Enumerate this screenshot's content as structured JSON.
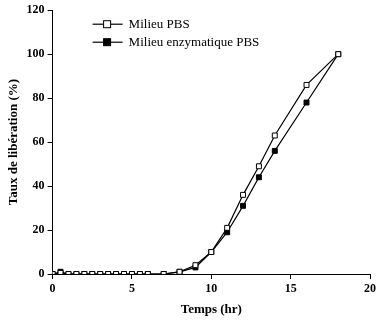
{
  "chart_data": {
    "type": "line",
    "x_label": "Temps (hr)",
    "y_label": "Taux de libération (%)",
    "x": [
      0,
      0.5,
      1,
      1.5,
      2,
      2.5,
      3,
      3.5,
      4,
      4.5,
      5,
      5.5,
      6,
      7,
      8,
      9,
      10,
      11,
      12,
      13,
      14,
      16,
      18
    ],
    "series": [
      {
        "name": "Milieu PBS",
        "color": "#000000",
        "marker": "square_open",
        "values": [
          0,
          0.5,
          0,
          0,
          0,
          0,
          0,
          0,
          0,
          0,
          0,
          0,
          0,
          0,
          1,
          4,
          10,
          21,
          36,
          49,
          63,
          86,
          100
        ]
      },
      {
        "name": "Milieu enzymatique PBS",
        "color": "#000000",
        "marker": "square",
        "values": [
          0,
          1,
          0,
          0,
          0,
          0,
          0,
          0,
          0,
          0,
          0,
          0,
          0,
          0,
          1,
          3,
          10,
          19,
          31,
          44,
          56,
          78,
          100
        ]
      }
    ],
    "xlim": [
      0,
      20
    ],
    "xticks": [
      0,
      5,
      10,
      15,
      20
    ],
    "ylim": [
      0,
      120
    ],
    "yticks": [
      0,
      20,
      40,
      60,
      80,
      100,
      120
    ],
    "grid": false,
    "legend": "upper left"
  }
}
